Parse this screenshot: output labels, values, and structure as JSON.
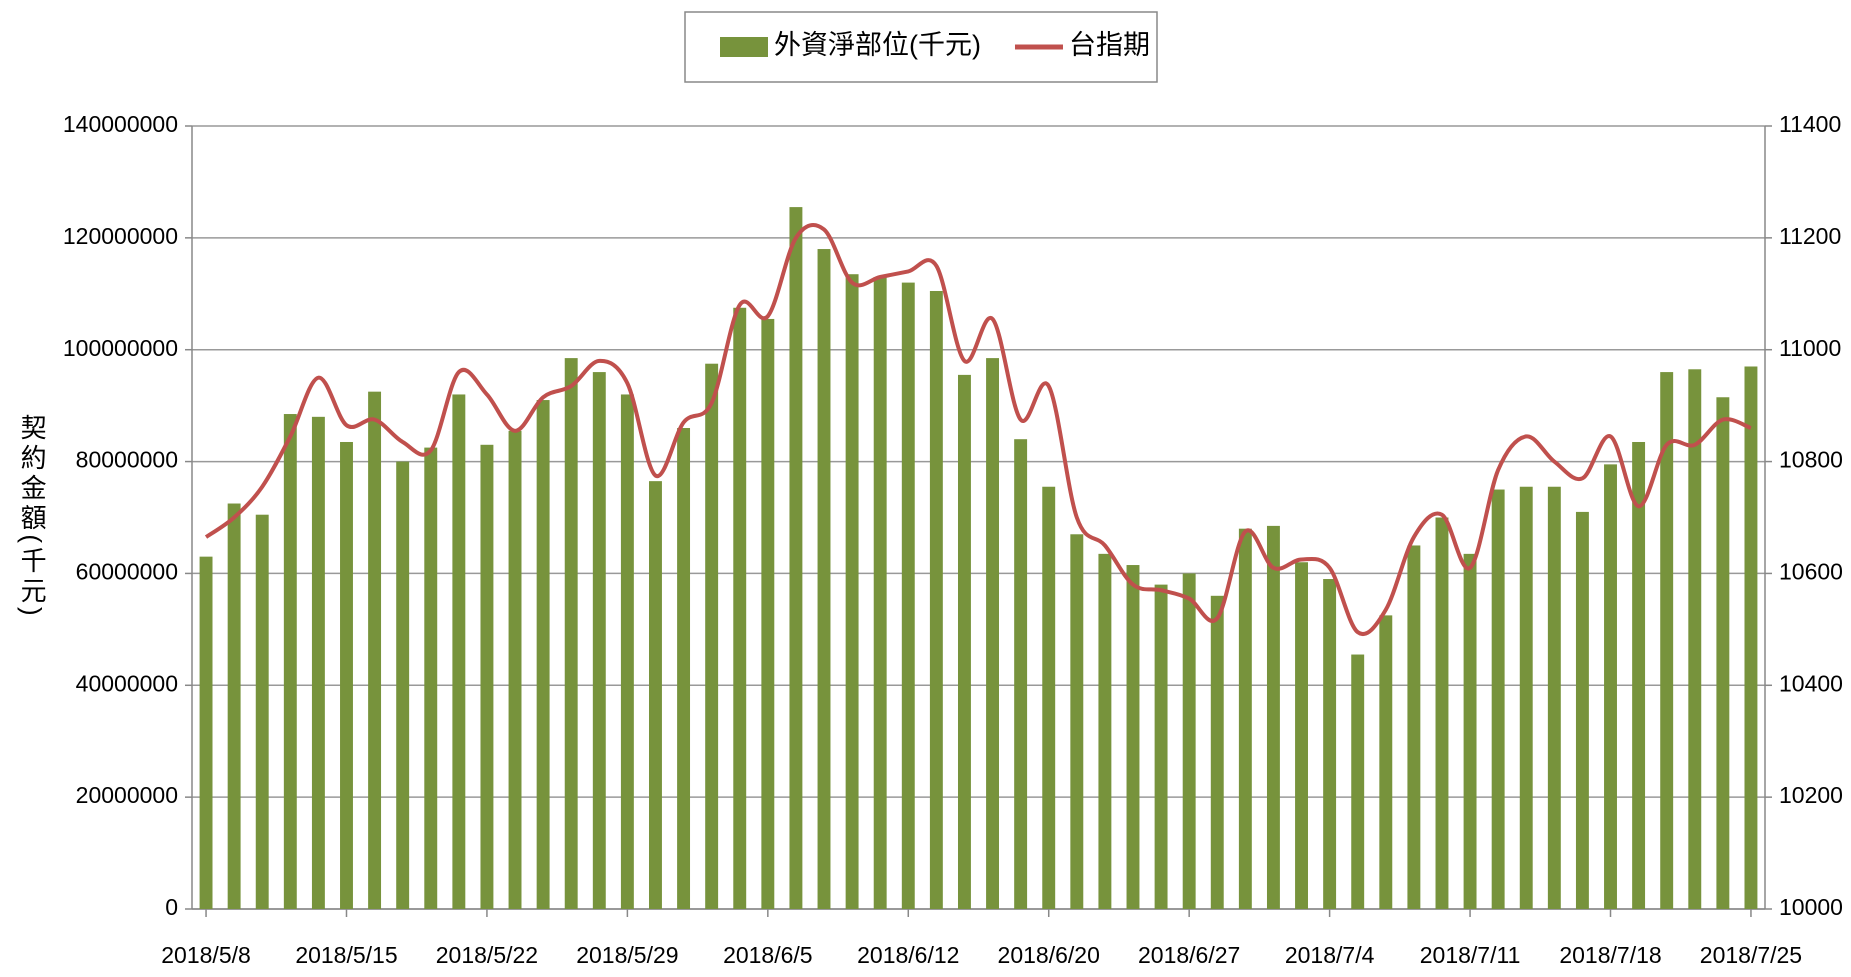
{
  "chart_data": {
    "type": "bar",
    "y_label": "契約金額(千元)",
    "categories": [
      "2018/5/8",
      null,
      null,
      null,
      null,
      "2018/5/15",
      null,
      null,
      null,
      null,
      "2018/5/22",
      null,
      null,
      null,
      null,
      "2018/5/29",
      null,
      null,
      null,
      null,
      "2018/6/5",
      null,
      null,
      null,
      null,
      "2018/6/12",
      null,
      null,
      null,
      null,
      "2018/6/20",
      null,
      null,
      null,
      null,
      "2018/6/27",
      null,
      null,
      null,
      null,
      "2018/7/4",
      null,
      null,
      null,
      null,
      "2018/7/11",
      null,
      null,
      null,
      null,
      "2018/7/18",
      null,
      null,
      null,
      null,
      "2018/7/25"
    ],
    "series": [
      {
        "name": "外資淨部位(千元)",
        "type": "bar",
        "color": "#77933c",
        "values": [
          63000000,
          72500000,
          70500000,
          88500000,
          88000000,
          83500000,
          92500000,
          80000000,
          82500000,
          92000000,
          83000000,
          85500000,
          91000000,
          98500000,
          96000000,
          92000000,
          76500000,
          86000000,
          97500000,
          107500000,
          105500000,
          125500000,
          118000000,
          113500000,
          113000000,
          112000000,
          110500000,
          95500000,
          98500000,
          84000000,
          75500000,
          67000000,
          63500000,
          61500000,
          58000000,
          60000000,
          56000000,
          68000000,
          68500000,
          62000000,
          59000000,
          45500000,
          52500000,
          65000000,
          70000000,
          63500000,
          75000000,
          75500000,
          75500000,
          71000000,
          79500000,
          83500000,
          96000000,
          96500000,
          91500000,
          97000000
        ]
      },
      {
        "name": "台指期",
        "type": "line",
        "axis": "y2",
        "color": "#c0504d",
        "values": [
          10665,
          10700,
          10755,
          10845,
          10950,
          10865,
          10875,
          10835,
          10820,
          10960,
          10920,
          10855,
          10915,
          10935,
          10980,
          10940,
          10775,
          10870,
          10905,
          11080,
          11060,
          11200,
          11215,
          11120,
          11130,
          11140,
          11150,
          10980,
          11055,
          10875,
          10935,
          10700,
          10650,
          10580,
          10570,
          10555,
          10520,
          10675,
          10610,
          10625,
          10610,
          10495,
          10535,
          10665,
          10705,
          10610,
          10785,
          10845,
          10800,
          10770,
          10845,
          10720,
          10830,
          10830,
          10875,
          10860
        ]
      }
    ],
    "ylim": [
      0,
      140000000
    ],
    "yticks": [
      0,
      20000000,
      40000000,
      60000000,
      80000000,
      100000000,
      120000000,
      140000000
    ],
    "y2lim": [
      10000,
      11400
    ],
    "y2ticks": [
      10000,
      10200,
      10400,
      10600,
      10800,
      11000,
      11200,
      11400
    ],
    "grid": true,
    "legend": "top"
  }
}
